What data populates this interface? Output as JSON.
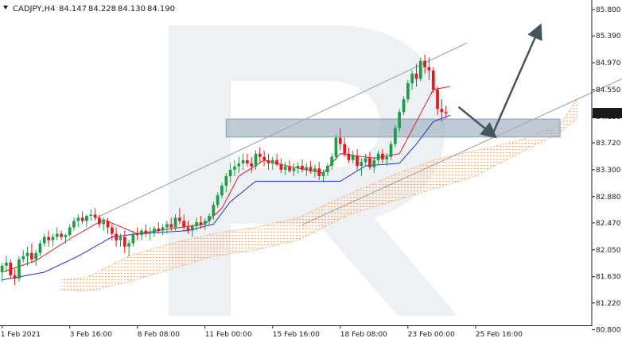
{
  "header": {
    "symbol_label": "CADJPY,H4",
    "open": "84.147",
    "high": "84.228",
    "low": "84.130",
    "close": "84.190"
  },
  "current_price_label": "84.190",
  "colors": {
    "candle_up": "#1a9e4a",
    "candle_down": "#e21a1a",
    "tenkan": "#e21a1a",
    "kijun": "#1f2fd6",
    "cloud": "#f0a878",
    "channel": "#a9a9a9",
    "arrow": "#455560",
    "zone": "#aab8c8",
    "watermark": "#eef1f4",
    "price_box": "#1a1a1a"
  },
  "chart_data": {
    "type": "candlestick",
    "ylim": [
      80.87,
      85.95
    ],
    "y_ticks": [
      "85.800",
      "85.390",
      "84.970",
      "84.550",
      "84.130",
      "83.720",
      "83.300",
      "82.880",
      "82.470",
      "82.050",
      "81.630",
      "81.220",
      "80.800"
    ],
    "y_tick_values": [
      85.8,
      85.39,
      84.97,
      84.55,
      84.13,
      83.72,
      83.3,
      82.88,
      82.47,
      82.05,
      81.63,
      81.22,
      80.8
    ],
    "x_ticks": [
      "1 Feb 2021",
      "3 Feb 16:00",
      "8 Feb 08:00",
      "11 Feb 00:00",
      "15 Feb 16:00",
      "18 Feb 08:00",
      "23 Feb 00:00",
      "25 Feb 16:00"
    ],
    "x_tick_bars": [
      0,
      16,
      32,
      48,
      64,
      80,
      96,
      112
    ],
    "bars_total": 140,
    "candles": [
      [
        81.7,
        81.85,
        81.55,
        81.8
      ],
      [
        81.8,
        81.95,
        81.7,
        81.85
      ],
      [
        81.85,
        81.9,
        81.6,
        81.65
      ],
      [
        81.65,
        81.75,
        81.5,
        81.6
      ],
      [
        81.6,
        81.95,
        81.55,
        81.9
      ],
      [
        81.9,
        82.05,
        81.85,
        81.95
      ],
      [
        81.95,
        82.1,
        81.8,
        82.0
      ],
      [
        82.0,
        82.15,
        81.85,
        81.9
      ],
      [
        81.9,
        82.05,
        81.8,
        82.0
      ],
      [
        82.0,
        82.2,
        81.95,
        82.15
      ],
      [
        82.15,
        82.3,
        82.1,
        82.25
      ],
      [
        82.25,
        82.35,
        82.1,
        82.2
      ],
      [
        82.2,
        82.3,
        82.1,
        82.25
      ],
      [
        82.25,
        82.4,
        82.2,
        82.3
      ],
      [
        82.3,
        82.35,
        82.2,
        82.25
      ],
      [
        82.25,
        82.3,
        82.15,
        82.28
      ],
      [
        82.28,
        82.45,
        82.25,
        82.4
      ],
      [
        82.4,
        82.55,
        82.35,
        82.5
      ],
      [
        82.5,
        82.6,
        82.4,
        82.55
      ],
      [
        82.55,
        82.65,
        82.45,
        82.5
      ],
      [
        82.5,
        82.6,
        82.4,
        82.58
      ],
      [
        82.58,
        82.68,
        82.5,
        82.6
      ],
      [
        82.6,
        82.7,
        82.5,
        82.55
      ],
      [
        82.55,
        82.6,
        82.4,
        82.45
      ],
      [
        82.45,
        82.55,
        82.35,
        82.5
      ],
      [
        82.5,
        82.55,
        82.3,
        82.4
      ],
      [
        82.4,
        82.45,
        82.2,
        82.3
      ],
      [
        82.3,
        82.4,
        82.1,
        82.2
      ],
      [
        82.2,
        82.3,
        82.1,
        82.25
      ],
      [
        82.25,
        82.35,
        82.0,
        82.1
      ],
      [
        82.1,
        82.2,
        81.95,
        82.15
      ],
      [
        82.15,
        82.35,
        82.1,
        82.3
      ],
      [
        82.3,
        82.4,
        82.2,
        82.28
      ],
      [
        82.28,
        82.38,
        82.2,
        82.35
      ],
      [
        82.35,
        82.45,
        82.25,
        82.3
      ],
      [
        82.3,
        82.4,
        82.2,
        82.32
      ],
      [
        82.32,
        82.42,
        82.25,
        82.38
      ],
      [
        82.38,
        82.48,
        82.3,
        82.35
      ],
      [
        82.35,
        82.45,
        82.28,
        82.4
      ],
      [
        82.4,
        82.5,
        82.3,
        82.45
      ],
      [
        82.45,
        82.55,
        82.35,
        82.4
      ],
      [
        82.4,
        82.6,
        82.35,
        82.55
      ],
      [
        82.55,
        82.7,
        82.45,
        82.5
      ],
      [
        82.5,
        82.6,
        82.35,
        82.4
      ],
      [
        82.4,
        82.5,
        82.3,
        82.35
      ],
      [
        82.35,
        82.45,
        82.25,
        82.42
      ],
      [
        82.42,
        82.55,
        82.35,
        82.48
      ],
      [
        82.48,
        82.58,
        82.38,
        82.44
      ],
      [
        82.44,
        82.54,
        82.36,
        82.5
      ],
      [
        82.5,
        82.62,
        82.44,
        82.58
      ],
      [
        82.58,
        82.8,
        82.52,
        82.75
      ],
      [
        82.75,
        82.95,
        82.7,
        82.9
      ],
      [
        82.9,
        83.1,
        82.85,
        83.05
      ],
      [
        83.05,
        83.25,
        82.95,
        83.2
      ],
      [
        83.2,
        83.4,
        83.1,
        83.3
      ],
      [
        83.3,
        83.45,
        83.2,
        83.35
      ],
      [
        83.35,
        83.5,
        83.25,
        83.4
      ],
      [
        83.4,
        83.55,
        83.3,
        83.45
      ],
      [
        83.45,
        83.55,
        83.35,
        83.4
      ],
      [
        83.4,
        83.5,
        83.25,
        83.35
      ],
      [
        83.35,
        83.6,
        83.3,
        83.55
      ],
      [
        83.55,
        83.65,
        83.4,
        83.5
      ],
      [
        83.5,
        83.6,
        83.35,
        83.45
      ],
      [
        83.45,
        83.55,
        83.3,
        83.4
      ],
      [
        83.4,
        83.5,
        83.3,
        83.45
      ],
      [
        83.45,
        83.55,
        83.35,
        83.38
      ],
      [
        83.38,
        83.48,
        83.25,
        83.3
      ],
      [
        83.3,
        83.42,
        83.22,
        83.35
      ],
      [
        83.35,
        83.45,
        83.25,
        83.28
      ],
      [
        83.28,
        83.4,
        83.2,
        83.32
      ],
      [
        83.32,
        83.42,
        83.24,
        83.36
      ],
      [
        83.36,
        83.46,
        83.26,
        83.3
      ],
      [
        83.3,
        83.4,
        83.2,
        83.34
      ],
      [
        83.34,
        83.44,
        83.24,
        83.28
      ],
      [
        83.28,
        83.38,
        83.18,
        83.32
      ],
      [
        83.32,
        83.42,
        83.14,
        83.2
      ],
      [
        83.2,
        83.3,
        83.1,
        83.26
      ],
      [
        83.26,
        83.4,
        83.2,
        83.36
      ],
      [
        83.36,
        83.55,
        83.3,
        83.5
      ],
      [
        83.5,
        83.85,
        83.45,
        83.8
      ],
      [
        83.8,
        83.95,
        83.6,
        83.7
      ],
      [
        83.7,
        83.8,
        83.5,
        83.55
      ],
      [
        83.55,
        83.65,
        83.4,
        83.45
      ],
      [
        83.45,
        83.6,
        83.4,
        83.52
      ],
      [
        83.52,
        83.62,
        83.3,
        83.36
      ],
      [
        83.36,
        83.48,
        83.2,
        83.42
      ],
      [
        83.42,
        83.55,
        83.35,
        83.48
      ],
      [
        83.48,
        83.58,
        83.3,
        83.34
      ],
      [
        83.34,
        83.5,
        83.25,
        83.45
      ],
      [
        83.45,
        83.6,
        83.38,
        83.55
      ],
      [
        83.55,
        83.62,
        83.4,
        83.46
      ],
      [
        83.46,
        83.56,
        83.36,
        83.5
      ],
      [
        83.5,
        83.75,
        83.45,
        83.7
      ],
      [
        83.7,
        84.0,
        83.65,
        83.95
      ],
      [
        83.95,
        84.25,
        83.9,
        84.2
      ],
      [
        84.2,
        84.45,
        84.15,
        84.4
      ],
      [
        84.4,
        84.7,
        84.35,
        84.65
      ],
      [
        84.65,
        84.85,
        84.55,
        84.8
      ],
      [
        84.8,
        84.95,
        84.6,
        84.72
      ],
      [
        84.72,
        85.05,
        84.68,
        85.0
      ],
      [
        85.0,
        85.1,
        84.8,
        84.9
      ],
      [
        84.9,
        85.05,
        84.7,
        84.85
      ],
      [
        84.85,
        84.9,
        84.5,
        84.55
      ],
      [
        84.55,
        84.6,
        84.15,
        84.25
      ],
      [
        84.25,
        84.4,
        84.05,
        84.2
      ],
      [
        84.2,
        84.3,
        84.1,
        84.18
      ]
    ],
    "tenkan_sen": [
      [
        0,
        81.7
      ],
      [
        8,
        81.88
      ],
      [
        16,
        82.22
      ],
      [
        24,
        82.52
      ],
      [
        32,
        82.3
      ],
      [
        40,
        82.38
      ],
      [
        48,
        82.45
      ],
      [
        52,
        82.7
      ],
      [
        56,
        83.2
      ],
      [
        62,
        83.45
      ],
      [
        68,
        83.35
      ],
      [
        76,
        83.25
      ],
      [
        80,
        83.55
      ],
      [
        88,
        83.48
      ],
      [
        94,
        83.55
      ],
      [
        98,
        84.05
      ],
      [
        102,
        84.55
      ],
      [
        106,
        84.6
      ]
    ],
    "kijun_sen": [
      [
        0,
        81.58
      ],
      [
        10,
        81.7
      ],
      [
        18,
        81.95
      ],
      [
        26,
        82.25
      ],
      [
        32,
        82.3
      ],
      [
        44,
        82.35
      ],
      [
        50,
        82.45
      ],
      [
        54,
        82.8
      ],
      [
        60,
        83.12
      ],
      [
        80,
        83.12
      ],
      [
        86,
        83.36
      ],
      [
        94,
        83.4
      ],
      [
        98,
        83.7
      ],
      [
        102,
        84.05
      ],
      [
        106,
        84.15
      ]
    ],
    "cloud_span_a": [
      [
        14,
        81.58
      ],
      [
        20,
        81.62
      ],
      [
        30,
        81.95
      ],
      [
        40,
        82.15
      ],
      [
        50,
        82.3
      ],
      [
        60,
        82.4
      ],
      [
        70,
        82.55
      ],
      [
        82,
        82.92
      ],
      [
        92,
        83.2
      ],
      [
        102,
        83.45
      ],
      [
        112,
        83.6
      ],
      [
        122,
        83.75
      ],
      [
        132,
        84.0
      ],
      [
        136,
        84.4
      ]
    ],
    "cloud_span_b": [
      [
        14,
        81.43
      ],
      [
        20,
        81.4
      ],
      [
        30,
        81.55
      ],
      [
        40,
        81.75
      ],
      [
        50,
        81.95
      ],
      [
        60,
        82.05
      ],
      [
        70,
        82.2
      ],
      [
        82,
        82.6
      ],
      [
        92,
        82.8
      ],
      [
        102,
        83.0
      ],
      [
        112,
        83.2
      ],
      [
        122,
        83.55
      ],
      [
        132,
        83.88
      ],
      [
        136,
        84.1
      ]
    ],
    "channel_upper": [
      [
        22,
        82.54
      ],
      [
        110,
        85.28
      ]
    ],
    "channel_lower": [
      [
        71,
        82.44
      ],
      [
        158,
        85.06
      ]
    ],
    "support_zone": {
      "x_start": 53,
      "x_end": 132,
      "y_low": 83.81,
      "y_high": 84.09
    },
    "forecast_arrow": [
      [
        108,
        84.28
      ],
      [
        116,
        83.85
      ],
      [
        127,
        85.5
      ]
    ]
  }
}
